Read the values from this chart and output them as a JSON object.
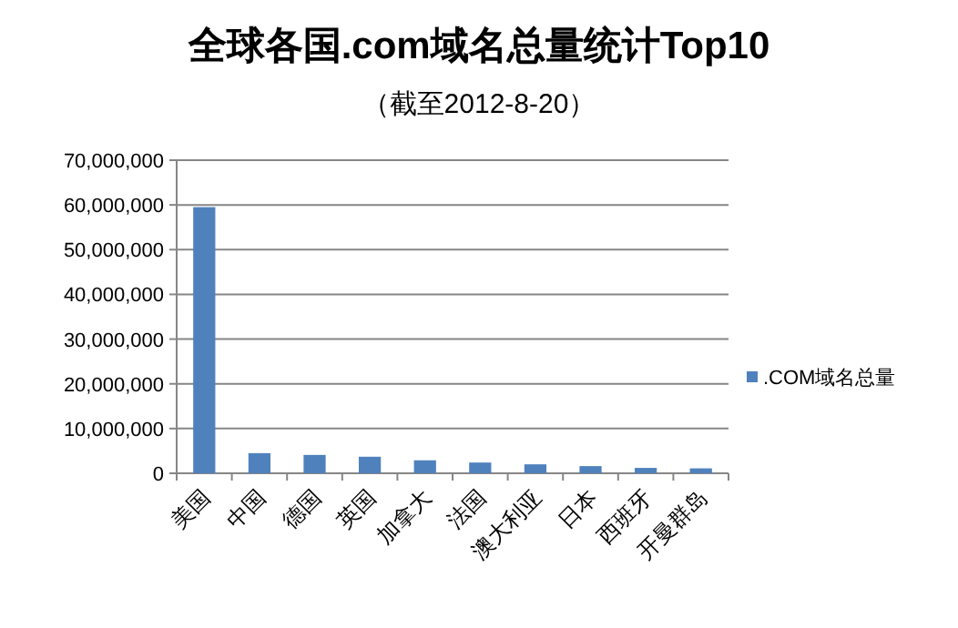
{
  "chart_data": {
    "type": "bar",
    "title": "全球各国.com域名总量统计Top10",
    "subtitle": "（截至2012-8-20）",
    "categories": [
      "美国",
      "中国",
      "德国",
      "英国",
      "加拿大",
      "法国",
      "澳大利亚",
      "日本",
      "西班牙",
      "开曼群岛"
    ],
    "series": [
      {
        "name": ".COM域名总量",
        "color": "#4f81bd",
        "values": [
          59500000,
          4500000,
          4100000,
          3700000,
          2900000,
          2400000,
          2000000,
          1600000,
          1200000,
          1100000
        ]
      }
    ],
    "ylim": [
      0,
      70000000
    ],
    "yticks": [
      {
        "value": 0,
        "label": "0"
      },
      {
        "value": 10000000,
        "label": "10,000,000"
      },
      {
        "value": 20000000,
        "label": "20,000,000"
      },
      {
        "value": 30000000,
        "label": "30,000,000"
      },
      {
        "value": 40000000,
        "label": "40,000,000"
      },
      {
        "value": 50000000,
        "label": "50,000,000"
      },
      {
        "value": 60000000,
        "label": "60,000,000"
      },
      {
        "value": 70000000,
        "label": "70,000,000"
      }
    ],
    "grid": "y",
    "legend": "right"
  }
}
